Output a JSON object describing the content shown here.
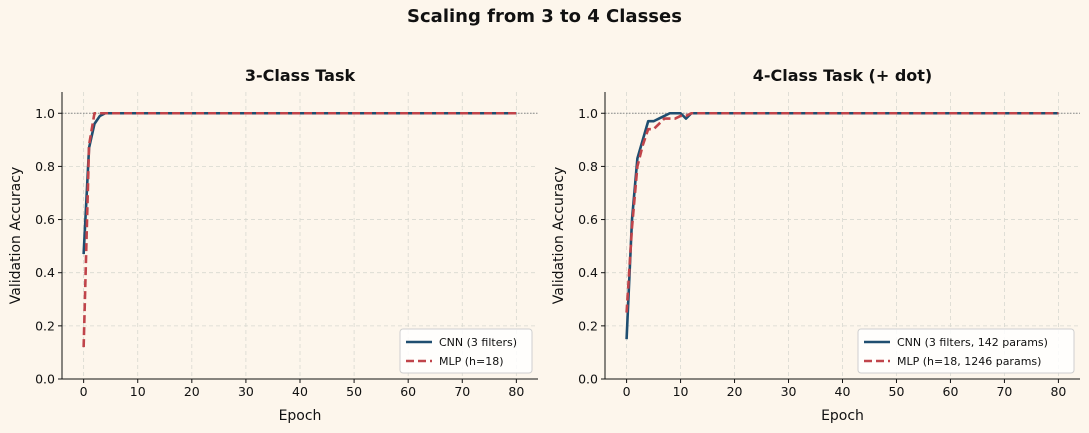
{
  "figure": {
    "suptitle": "Scaling from 3 to 4 Classes"
  },
  "colors": {
    "background": "#fdf6ec",
    "cnn": "#1f4e70",
    "mlp": "#c0444a",
    "grid": "#d8d8d0",
    "ref_line": "#888888"
  },
  "chart_data": [
    {
      "type": "line",
      "title": "3-Class Task",
      "xlabel": "Epoch",
      "ylabel": "Validation Accuracy",
      "xlim": [
        -4,
        84
      ],
      "ylim": [
        0.0,
        1.08
      ],
      "xticks": [
        "0",
        "10",
        "20",
        "30",
        "40",
        "50",
        "60",
        "70",
        "80"
      ],
      "yticks": [
        "0.0",
        "0.2",
        "0.4",
        "0.6",
        "0.8",
        "1.0"
      ],
      "grid": true,
      "reference_line_y": 1.0,
      "legend_position": "lower-right",
      "series": [
        {
          "name": "CNN (3 filters)",
          "style": "solid",
          "x": [
            0,
            1,
            2,
            3,
            4,
            5,
            10,
            20,
            30,
            40,
            50,
            60,
            70,
            80
          ],
          "y": [
            0.47,
            0.87,
            0.96,
            0.99,
            1.0,
            1.0,
            1.0,
            1.0,
            1.0,
            1.0,
            1.0,
            1.0,
            1.0,
            1.0
          ]
        },
        {
          "name": "MLP (h=18)",
          "style": "dashed",
          "x": [
            0,
            1,
            2,
            3,
            4,
            5,
            10,
            20,
            30,
            40,
            50,
            60,
            70,
            80
          ],
          "y": [
            0.12,
            0.88,
            1.0,
            1.0,
            1.0,
            1.0,
            1.0,
            1.0,
            1.0,
            1.0,
            1.0,
            1.0,
            1.0,
            1.0
          ]
        }
      ]
    },
    {
      "type": "line",
      "title": "4-Class Task (+ dot)",
      "xlabel": "Epoch",
      "ylabel": "Validation Accuracy",
      "xlim": [
        -4,
        84
      ],
      "ylim": [
        0.0,
        1.08
      ],
      "xticks": [
        "0",
        "10",
        "20",
        "30",
        "40",
        "50",
        "60",
        "70",
        "80"
      ],
      "yticks": [
        "0.0",
        "0.2",
        "0.4",
        "0.6",
        "0.8",
        "1.0"
      ],
      "grid": true,
      "reference_line_y": 1.0,
      "legend_position": "lower-right",
      "series": [
        {
          "name": "CNN (3 filters, 142 params)",
          "style": "solid",
          "x": [
            0,
            1,
            2,
            3,
            4,
            5,
            6,
            7,
            8,
            9,
            10,
            11,
            12,
            13,
            14,
            15,
            20,
            30,
            40,
            50,
            60,
            70,
            80
          ],
          "y": [
            0.15,
            0.6,
            0.83,
            0.9,
            0.97,
            0.97,
            0.98,
            0.99,
            1.0,
            1.0,
            1.0,
            0.98,
            1.0,
            1.0,
            1.0,
            1.0,
            1.0,
            1.0,
            1.0,
            1.0,
            1.0,
            1.0,
            1.0
          ]
        },
        {
          "name": "MLP (h=18, 1246 params)",
          "style": "dashed",
          "x": [
            0,
            1,
            2,
            3,
            4,
            5,
            6,
            7,
            8,
            9,
            10,
            11,
            12,
            13,
            14,
            15,
            20,
            30,
            40,
            50,
            60,
            70,
            80
          ],
          "y": [
            0.25,
            0.57,
            0.8,
            0.88,
            0.94,
            0.94,
            0.96,
            0.98,
            0.98,
            0.98,
            0.99,
            0.99,
            1.0,
            1.0,
            1.0,
            1.0,
            1.0,
            1.0,
            1.0,
            1.0,
            1.0,
            1.0,
            1.0
          ]
        }
      ]
    }
  ]
}
